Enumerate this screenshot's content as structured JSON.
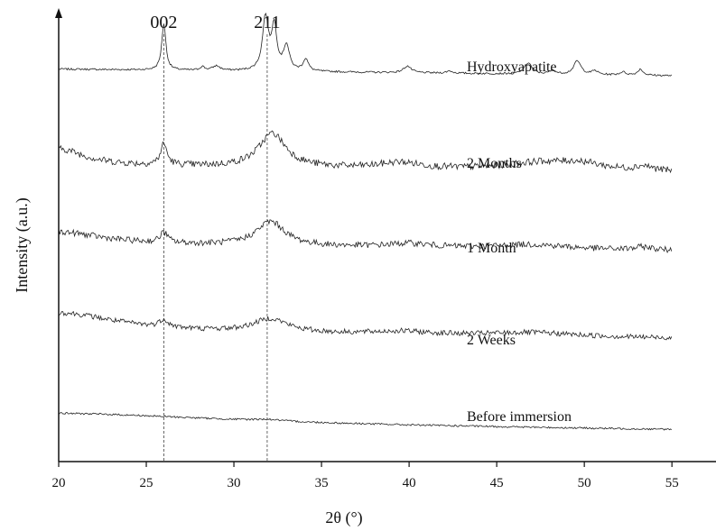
{
  "chart_data": {
    "type": "line",
    "title": "",
    "xlabel": "2θ (°)",
    "ylabel": "Intensity (a.u.)",
    "xlim": [
      20,
      57
    ],
    "ylim": [
      0,
      5.9
    ],
    "xticks": [
      20,
      25,
      30,
      35,
      40,
      45,
      50,
      55
    ],
    "x_tick_labels": [
      "20",
      "25",
      "30",
      "35",
      "40",
      "45",
      "50",
      "55"
    ],
    "y_ticks_shown": false,
    "grid": false,
    "legend": "none",
    "line_color": "#222222",
    "reference_lines": [
      {
        "label": "002",
        "x": 26.0
      },
      {
        "label": "211",
        "x": 31.9
      }
    ],
    "series": [
      {
        "name": "Hydroxyapatite",
        "baseline": 5.2,
        "noise": 0.012,
        "peaks": [
          {
            "x": 26.0,
            "h": 0.62,
            "w": 0.14
          },
          {
            "x": 28.2,
            "h": 0.05,
            "w": 0.15
          },
          {
            "x": 29.0,
            "h": 0.06,
            "w": 0.25
          },
          {
            "x": 31.8,
            "h": 0.7,
            "w": 0.2
          },
          {
            "x": 32.3,
            "h": 0.57,
            "w": 0.18
          },
          {
            "x": 33.0,
            "h": 0.33,
            "w": 0.2
          },
          {
            "x": 34.1,
            "h": 0.16,
            "w": 0.18
          },
          {
            "x": 39.9,
            "h": 0.09,
            "w": 0.25
          },
          {
            "x": 42.3,
            "h": 0.03,
            "w": 0.2
          },
          {
            "x": 46.8,
            "h": 0.15,
            "w": 0.25
          },
          {
            "x": 48.2,
            "h": 0.05,
            "w": 0.2
          },
          {
            "x": 49.6,
            "h": 0.18,
            "w": 0.25
          },
          {
            "x": 50.6,
            "h": 0.05,
            "w": 0.2
          },
          {
            "x": 52.2,
            "h": 0.04,
            "w": 0.2
          },
          {
            "x": 53.2,
            "h": 0.08,
            "w": 0.18
          }
        ]
      },
      {
        "name": "2 Months",
        "baseline": 3.92,
        "noise": 0.045,
        "peaks": [
          {
            "x": 20.0,
            "h": 0.22,
            "w": 1.8
          },
          {
            "x": 26.0,
            "h": 0.28,
            "w": 0.22
          },
          {
            "x": 32.2,
            "h": 0.45,
            "w": 0.95
          },
          {
            "x": 39.5,
            "h": 0.08,
            "w": 1.5
          },
          {
            "x": 47.5,
            "h": 0.1,
            "w": 2.5
          },
          {
            "x": 49.8,
            "h": 0.08,
            "w": 1.5
          },
          {
            "x": 53.4,
            "h": 0.06,
            "w": 0.6
          }
        ]
      },
      {
        "name": "1 Month",
        "baseline": 2.88,
        "noise": 0.04,
        "peaks": [
          {
            "x": 20.0,
            "h": 0.16,
            "w": 3.0
          },
          {
            "x": 26.0,
            "h": 0.14,
            "w": 0.25
          },
          {
            "x": 32.1,
            "h": 0.32,
            "w": 1.0
          },
          {
            "x": 40.0,
            "h": 0.05,
            "w": 1.5
          },
          {
            "x": 47.0,
            "h": 0.06,
            "w": 2.5
          },
          {
            "x": 53.4,
            "h": 0.04,
            "w": 0.6
          }
        ]
      },
      {
        "name": "2 Weeks",
        "baseline": 1.72,
        "noise": 0.035,
        "peaks": [
          {
            "x": 20.0,
            "h": 0.25,
            "w": 4.0
          },
          {
            "x": 26.0,
            "h": 0.1,
            "w": 0.3
          },
          {
            "x": 32.1,
            "h": 0.18,
            "w": 1.2
          },
          {
            "x": 39.5,
            "h": 0.04,
            "w": 2.0
          },
          {
            "x": 47.0,
            "h": 0.05,
            "w": 3.0
          }
        ]
      },
      {
        "name": "Before immersion",
        "baseline": 0.5,
        "noise": 0.012,
        "peaks": [
          {
            "x": 20.0,
            "h": 0.14,
            "w": 12.0
          },
          {
            "x": 31.9,
            "h": 0.02,
            "w": 1.0
          }
        ]
      }
    ]
  }
}
